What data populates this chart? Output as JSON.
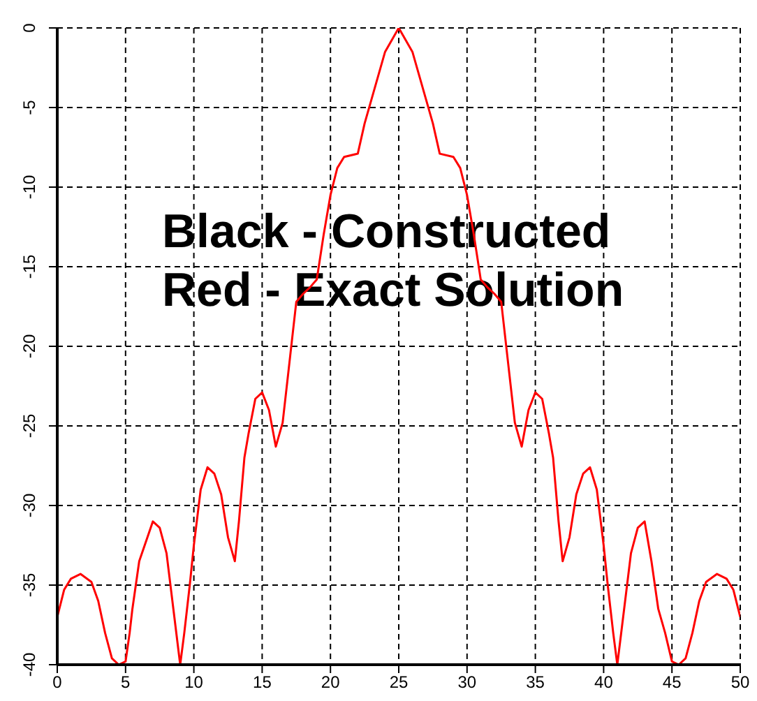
{
  "chart_data": {
    "type": "line",
    "x": [
      0,
      0.5,
      1,
      1.7,
      2.5,
      3,
      3.5,
      4,
      4.5,
      5,
      5.3,
      5.5,
      6,
      7,
      7.5,
      8,
      8.5,
      9,
      9.3,
      9.7,
      10,
      10.5,
      11,
      11.5,
      12,
      12.5,
      13,
      13.3,
      13.7,
      14,
      14.5,
      15,
      15.5,
      16,
      16.5,
      17,
      17.5,
      18,
      18.5,
      19,
      19.5,
      20,
      20.5,
      21,
      22,
      22.5,
      23,
      24,
      25,
      26,
      27,
      27.5,
      28,
      29,
      29.5,
      30,
      30.5,
      31,
      31.5,
      32,
      32.5,
      33,
      33.5,
      34,
      34.5,
      35,
      35.5,
      36,
      36.3,
      36.7,
      37,
      37.5,
      38,
      38.5,
      39,
      39.5,
      40,
      40.3,
      40.7,
      41,
      41.5,
      42,
      42.5,
      43,
      43.5,
      44,
      44.5,
      45,
      45.5,
      46,
      46.5,
      47,
      47.5,
      48.3,
      49,
      49.5,
      50
    ],
    "series": [
      {
        "color": "#ff0000",
        "values": [
          -37,
          -35.3,
          -34.6,
          -34.3,
          -34.8,
          -36,
          -38,
          -39.6,
          -40,
          -39.8,
          -38,
          -36.5,
          -33.5,
          -31,
          -31.4,
          -33,
          -36.5,
          -40,
          -38,
          -35,
          -32.5,
          -29,
          -27.6,
          -28,
          -29.3,
          -32,
          -33.5,
          -31,
          -27,
          -25.5,
          -23.3,
          -22.9,
          -24,
          -26.3,
          -24.8,
          -21,
          -17.2,
          -16.7,
          -16.3,
          -15.8,
          -13,
          -10.5,
          -8.8,
          -8.1,
          -7.9,
          -6,
          -4.5,
          -1.5,
          0,
          -1.5,
          -4.5,
          -6,
          -7.9,
          -8.1,
          -8.8,
          -10.5,
          -13,
          -15.8,
          -16.3,
          -16.7,
          -17.2,
          -21,
          -24.8,
          -26.3,
          -24,
          -22.9,
          -23.3,
          -25.5,
          -27,
          -31,
          -33.5,
          -32,
          -29.3,
          -28,
          -27.6,
          -29,
          -32.5,
          -35,
          -38,
          -40,
          -36.5,
          -33,
          -31.4,
          -31,
          -33.5,
          -36.5,
          -38,
          -39.8,
          -40,
          -39.6,
          -38,
          -36,
          -34.8,
          -34.3,
          -34.6,
          -35.3,
          -37
        ]
      }
    ],
    "xlim": [
      0,
      50
    ],
    "xticks": [
      0,
      5,
      10,
      15,
      20,
      25,
      30,
      35,
      40,
      45,
      50
    ],
    "ylim": [
      -40,
      0
    ],
    "yticks": [
      -40,
      -35,
      -30,
      -25,
      -20,
      -15,
      -10,
      -5,
      0
    ],
    "grid": true,
    "marker": "none",
    "line_style": "solid",
    "annotations": [
      "Black - Constructed",
      "Red - Exact Solution"
    ]
  }
}
